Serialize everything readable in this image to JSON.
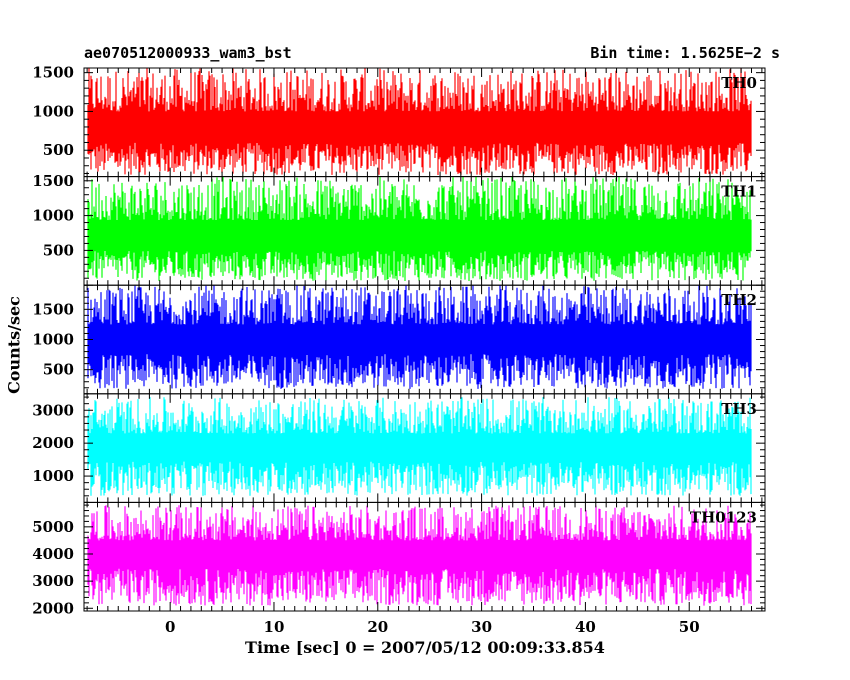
{
  "header": {
    "title": "ae070512000933_wam3_bst",
    "bin_time": "Bin time: 1.5625E−2 s"
  },
  "chart_data": {
    "type": "line",
    "xlabel": "Time [sec] 0 = 2007/05/12 00:09:33.854",
    "ylabel": "Counts/sec",
    "xlim": [
      -8.3,
      57.3
    ],
    "data_range_x": [
      -8.0,
      56.0
    ],
    "xticks": [
      "0",
      "10",
      "20",
      "30",
      "40",
      "50"
    ],
    "panels": [
      {
        "name": "TH0",
        "color": "#ff0000",
        "ylim": [
          160,
          1560
        ],
        "yticks": [
          "500",
          "1000",
          "1500"
        ],
        "typical_range": [
          180,
          1560
        ],
        "mean": 700
      },
      {
        "name": "TH1",
        "color": "#00ff00",
        "ylim": [
          0,
          1560
        ],
        "yticks": [
          "500",
          "1000",
          "1500"
        ],
        "typical_range": [
          60,
          1560
        ],
        "mean": 600
      },
      {
        "name": "TH2",
        "color": "#0000ff",
        "ylim": [
          100,
          1900
        ],
        "yticks": [
          "500",
          "1000",
          "1500"
        ],
        "typical_range": [
          180,
          1900
        ],
        "mean": 900
      },
      {
        "name": "TH3",
        "color": "#00ffff",
        "ylim": [
          200,
          3500
        ],
        "yticks": [
          "1000",
          "2000",
          "3000"
        ],
        "typical_range": [
          400,
          3400
        ],
        "mean": 1700
      },
      {
        "name": "TH0123",
        "color": "#ff00ff",
        "ylim": [
          1900,
          5900
        ],
        "yticks": [
          "2000",
          "3000",
          "4000",
          "5000"
        ],
        "typical_range": [
          2100,
          5800
        ],
        "mean": 3800
      }
    ]
  }
}
